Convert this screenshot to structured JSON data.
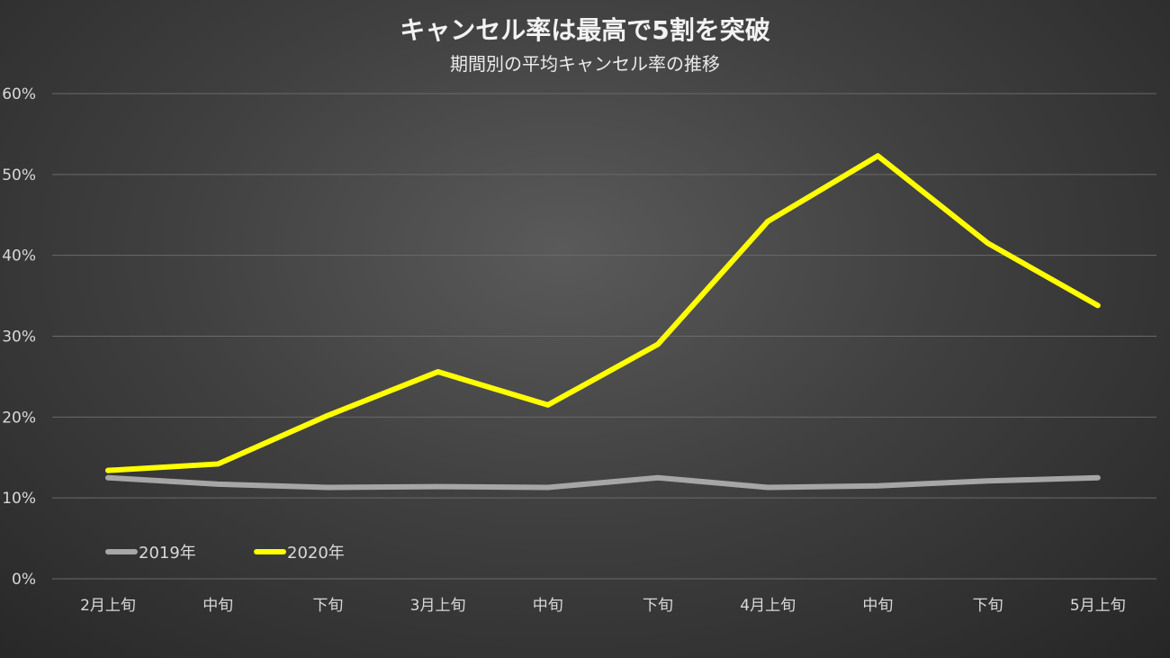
{
  "chart_data": {
    "type": "line",
    "title": "キャンセル率は最高で5割を突破",
    "subtitle": "期間別の平均キャンセル率の推移",
    "categories": [
      "2月上旬",
      "中旬",
      "下旬",
      "3月上旬",
      "中旬",
      "下旬",
      "4月上旬",
      "中旬",
      "下旬",
      "5月上旬"
    ],
    "ylim": [
      0,
      60
    ],
    "yticks": [
      0,
      10,
      20,
      30,
      40,
      50,
      60
    ],
    "ytick_labels": [
      "0%",
      "10%",
      "20%",
      "30%",
      "40%",
      "50%",
      "60%"
    ],
    "grid": true,
    "legend_position": "bottom-left",
    "series": [
      {
        "name": "2019年",
        "color": "#a6a6a6",
        "values": [
          12.5,
          11.7,
          11.3,
          11.4,
          11.3,
          12.5,
          11.3,
          11.5,
          12.1,
          12.5
        ]
      },
      {
        "name": "2020年",
        "color": "#ffff00",
        "values": [
          13.4,
          14.2,
          20.2,
          25.6,
          21.5,
          29.0,
          44.2,
          52.3,
          41.5,
          33.8
        ]
      }
    ]
  }
}
